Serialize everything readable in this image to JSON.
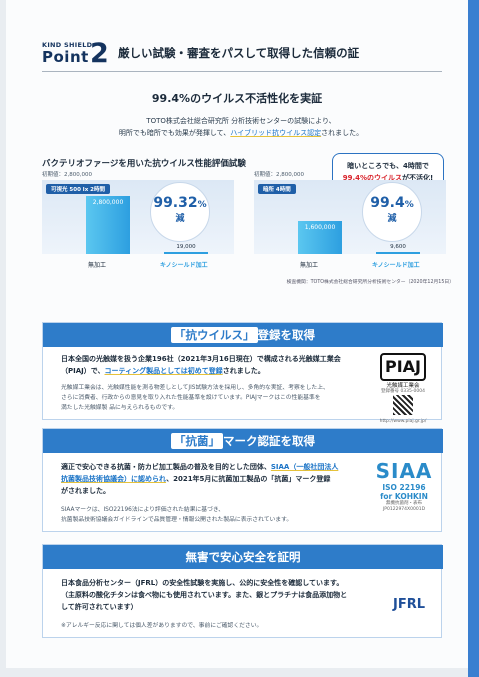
{
  "header": {
    "brand": "KIND SHIELD",
    "point_word": "Point",
    "point_number": "2",
    "title": "厳しい試験・審査をパスして取得した信頼の証"
  },
  "section": {
    "subtitle": "99.4%のウイルス不活性化を実証",
    "intro_line1": "TOTO株式会社総合研究所 分析技術センターの試験により、",
    "intro_line2_plain": "明所でも暗所でも効果が発揮して、",
    "intro_line2_highlight": "ハイブリッド抗ウイルス認定",
    "intro_line2_end": "されました。"
  },
  "graph": {
    "title": "バクテリオファージを用いた抗ウイルス性能評価試験",
    "callout_line1": "暗いところでも、4時間で",
    "callout_highlight": "99.4%のウイルス",
    "callout_end": "が不活化!",
    "source": "検査機関：TOTO株式会社総合研究所分析技術センター（2020年12月15日）"
  },
  "chart_data": [
    {
      "type": "bar",
      "condition": "可視光 500 lx 2時間",
      "initial_label": "初期値：2,800,000",
      "categories": [
        "無加工",
        "キノシールド加工"
      ],
      "values": [
        2800000,
        19000
      ],
      "value_labels": [
        "2,800,000",
        "19,000"
      ],
      "reduction_value": "99.32",
      "reduction_unit": "%",
      "reduction_word": "減",
      "ylim": [
        0,
        2800000
      ]
    },
    {
      "type": "bar",
      "condition": "暗所 4時間",
      "initial_label": "初期値：2,800,000",
      "categories": [
        "無加工",
        "キノシールド加工"
      ],
      "values": [
        1600000,
        9600
      ],
      "value_labels": [
        "1,600,000",
        "9,600"
      ],
      "reduction_value": "99.4",
      "reduction_unit": "%",
      "reduction_word": "減",
      "ylim": [
        0,
        2800000
      ]
    }
  ],
  "panel_virus": {
    "title_pre": "「抗ウイルス」",
    "title_post": "登録を取得",
    "body_line1": "日本全国の光触媒を扱う企業196社（2021年3月16日現在）で構成される光触媒工業会",
    "body_line2_plain": "（PIAJ）で、",
    "body_line2_highlight": "コーティング製品としては初めて登録",
    "body_line2_end": "されました。",
    "small_line1": "光触媒工業会は、光触媒性能を測る物差しとしてJIS試験方法を採用し、多角的な実証、考察をした上、",
    "small_line2": "さらに消費者、行政からの意見を取り入れた性能基準を設けています。PIAJマークはこの性能基準を",
    "small_line3": "満たした光触媒製 品に与えられるものです。",
    "logo_text": "PIAJ",
    "logo_caption": "光触媒工業会",
    "logo_number": "登録番号 0335-0004",
    "logo_url": "http://www.piaj.gr.jp/"
  },
  "panel_bacteria": {
    "title_pre": "「抗菌」",
    "title_post": "マーク認証を取得",
    "body_line1_plain": "適正で安心できる抗菌・防カビ加工製品の普及を目的とした団体、",
    "body_line1_highlight": "SIAA（一般社団法人",
    "body_line2_highlight": "抗菌製品技術協議会）に認められ",
    "body_line2_end": "、2021年5月に抗菌加工製品の「抗菌」マーク登録",
    "body_line3": "がされました。",
    "small_line1": "SIAAマークは、ISO22196法により評価された結果に基づき、",
    "small_line2": "抗菌製品技術協議会ガイドラインで品質管理・情報公開された製品に表示されています。",
    "logo_text": "SIAA",
    "logo_iso": "ISO 22196",
    "logo_for": "for KOHKIN",
    "logo_caption": "無機抗菌剤・表布",
    "logo_code": "JP0122974X0001D"
  },
  "panel_safe": {
    "title": "無害で安心安全を証明",
    "body_line1": "日本食品分析センター（JFRL）の安全性試験を実施し、公的に安全性を確認しています。",
    "body_line2": "（主原料の酸化チタンは食べ物にも使用されています。また、銀とプラチナは食品添加物と",
    "body_line3": "して許可されています）",
    "note": "※アレルギー反応に関しては個人差がありますので、事前にご確認ください。",
    "logo_text": "JFRL"
  }
}
